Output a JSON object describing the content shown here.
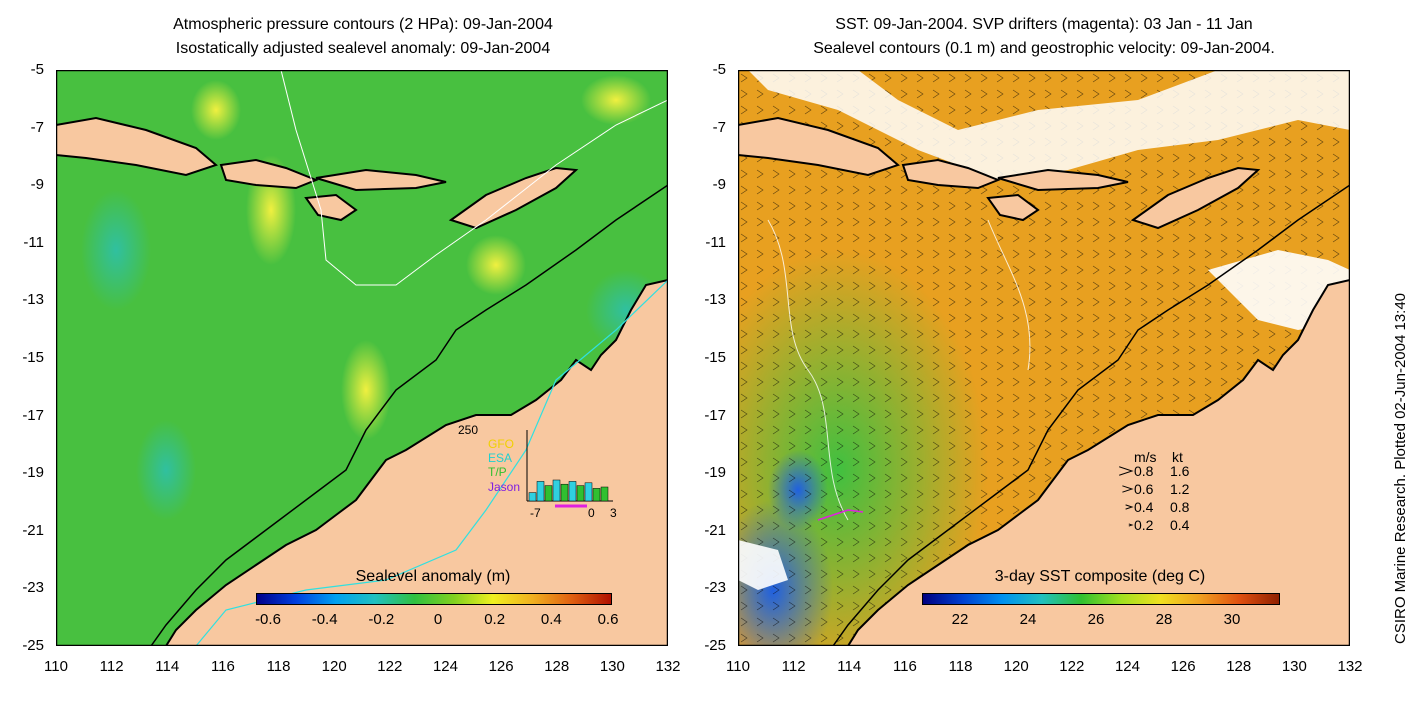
{
  "left_panel": {
    "title_line1": "Atmospheric pressure contours (2 HPa): 09-Jan-2004",
    "title_line2": "Isostatically adjusted sealevel anomaly: 09-Jan-2004",
    "colorbar": {
      "title": "Sealevel anomaly (m)",
      "ticks": [
        "-0.6",
        "-0.4",
        "-0.2",
        "0",
        "0.2",
        "0.4",
        "0.6"
      ]
    },
    "inset": {
      "ymax_label": "250",
      "legend": [
        {
          "label": "GFO",
          "color": "#f0d000"
        },
        {
          "label": "ESA",
          "color": "#20d0d0"
        },
        {
          "label": "T/P",
          "color": "#30c030"
        },
        {
          "label": "Jason",
          "color": "#8020e0"
        }
      ],
      "xticks": [
        "-7",
        "0",
        "3"
      ],
      "bars": [
        {
          "day": -7,
          "count": 30,
          "color": "#30d0e0"
        },
        {
          "day": -6,
          "count": 70,
          "color": "#30d0e0"
        },
        {
          "day": -5,
          "count": 55,
          "color": "#30c030"
        },
        {
          "day": -4,
          "count": 75,
          "color": "#30d0e0"
        },
        {
          "day": -3,
          "count": 60,
          "color": "#30c030"
        },
        {
          "day": -2,
          "count": 70,
          "color": "#30d0e0"
        },
        {
          "day": -1,
          "count": 55,
          "color": "#30c030"
        },
        {
          "day": 0,
          "count": 65,
          "color": "#30d0e0"
        },
        {
          "day": 1,
          "count": 45,
          "color": "#30c030"
        },
        {
          "day": 2,
          "count": 50,
          "color": "#30c030"
        }
      ]
    }
  },
  "right_panel": {
    "title_line1": "SST: 09-Jan-2004. SVP drifters (magenta): 03 Jan - 11 Jan",
    "title_line2": "Sealevel contours (0.1 m) and geostrophic velocity: 09-Jan-2004.",
    "colorbar": {
      "title": "3-day SST composite (deg C)",
      "ticks": [
        "22",
        "24",
        "26",
        "28",
        "30"
      ]
    },
    "velocity_legend": {
      "header_ms": "m/s",
      "header_kt": "kt",
      "rows": [
        {
          "ms": "0.8",
          "kt": "1.6"
        },
        {
          "ms": "0.6",
          "kt": "1.2"
        },
        {
          "ms": "0.4",
          "kt": "0.8"
        },
        {
          "ms": "0.2",
          "kt": "0.4"
        }
      ]
    }
  },
  "axes": {
    "lat_ticks": [
      "-5",
      "-7",
      "-9",
      "-11",
      "-13",
      "-15",
      "-17",
      "-19",
      "-21",
      "-23",
      "-25"
    ],
    "lon_ticks": [
      "110",
      "112",
      "114",
      "116",
      "118",
      "120",
      "122",
      "124",
      "126",
      "128",
      "130",
      "132"
    ]
  },
  "credit": "CSIRO Marine Research. Plotted 02-Jun-2004 13:40",
  "colors": {
    "land": "#f8c8a0",
    "ocean_left": "#48c040",
    "ocean_right": "#e8a020"
  }
}
